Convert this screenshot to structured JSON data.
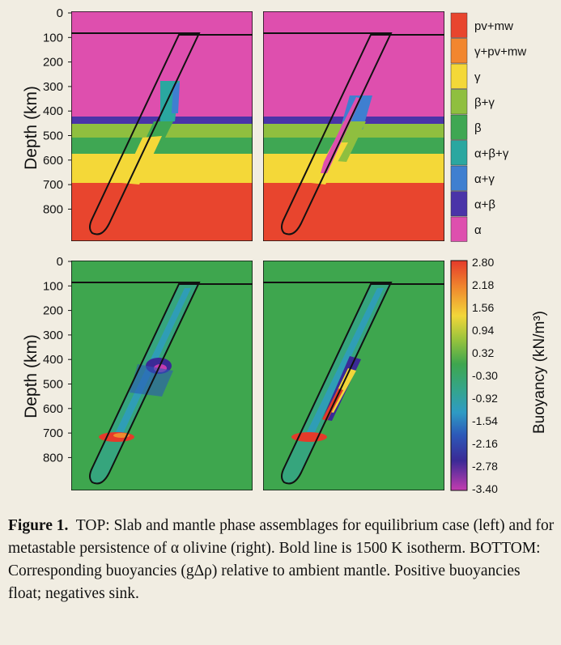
{
  "axis": {
    "ylabel": "Depth (km)",
    "ticks": [
      "0",
      "100",
      "200",
      "300",
      "400",
      "500",
      "600",
      "700",
      "800"
    ]
  },
  "phase_legend": {
    "items": [
      {
        "label": "pv+mw",
        "color": "#e8452e"
      },
      {
        "label": "γ+pv+mw",
        "color": "#f2862e"
      },
      {
        "label": "γ",
        "color": "#f4d838"
      },
      {
        "label": "β+γ",
        "color": "#8fbf3f"
      },
      {
        "label": "β",
        "color": "#3fa753"
      },
      {
        "label": "α+β+γ",
        "color": "#2aa7a0"
      },
      {
        "label": "α+γ",
        "color": "#3f7fd0"
      },
      {
        "label": "α+β",
        "color": "#4a34a8"
      },
      {
        "label": "α",
        "color": "#de4fae"
      }
    ]
  },
  "colorbar": {
    "title": "Buoyancy (kN/m³)",
    "ticks": [
      "2.80",
      "2.18",
      "1.56",
      "0.94",
      "0.32",
      "-0.30",
      "-0.92",
      "-1.54",
      "-2.16",
      "-2.78",
      "-3.40"
    ]
  },
  "caption": {
    "figure_label": "Figure 1.",
    "text": "TOP: Slab and mantle phase assemblages for equilibrium case (left) and for metastable persistence of α olivine (right). Bold line is 1500 K isotherm. BOTTOM: Corresponding buoyancies (gΔρ) relative to ambient mantle. Positive buoyancies float; negatives sink."
  }
}
